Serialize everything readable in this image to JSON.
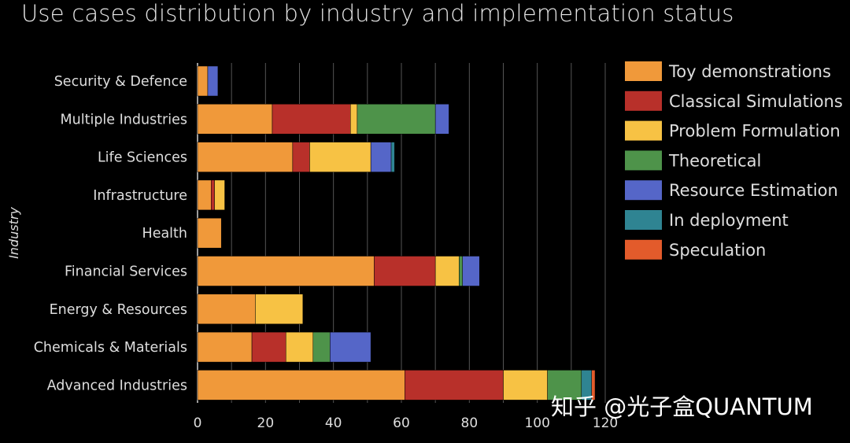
{
  "title": "Use cases distribution by industry and implementation status",
  "watermark": "知乎 @光子盒QUANTUM",
  "chart_data": {
    "type": "bar",
    "orientation": "horizontal",
    "stacked": true,
    "title": "Use cases distribution by industry and implementation status",
    "ylabel": "Industry",
    "xlabel": "",
    "xlim": [
      0,
      120
    ],
    "xticks": [
      0,
      20,
      40,
      60,
      80,
      100,
      120
    ],
    "grid": "vertical",
    "legend_position": "right",
    "categories": [
      "Security & Defence",
      "Multiple Industries",
      "Life Sciences",
      "Infrastructure",
      "Health",
      "Financial Services",
      "Energy & Resources",
      "Chemicals & Materials",
      "Advanced Industries"
    ],
    "series": [
      {
        "name": "Toy demonstrations",
        "color": "#f0993a",
        "values": [
          3,
          22,
          28,
          4,
          7,
          52,
          17,
          16,
          61
        ]
      },
      {
        "name": "Classical Simulations",
        "color": "#b8302a",
        "values": [
          0,
          23,
          5,
          1,
          0,
          18,
          0,
          10,
          29
        ]
      },
      {
        "name": "Problem Formulation",
        "color": "#f7c244",
        "values": [
          0,
          2,
          18,
          3,
          0,
          7,
          14,
          8,
          13
        ]
      },
      {
        "name": "Theoretical",
        "color": "#4e934a",
        "values": [
          0,
          23,
          0,
          0,
          0,
          1,
          0,
          5,
          10
        ]
      },
      {
        "name": "Resource Estimation",
        "color": "#5566c8",
        "values": [
          3,
          4,
          6,
          0,
          0,
          5,
          0,
          12,
          0
        ]
      },
      {
        "name": "In deployment",
        "color": "#2f8492",
        "values": [
          0,
          0,
          1,
          0,
          0,
          0,
          0,
          0,
          3
        ]
      },
      {
        "name": "Speculation",
        "color": "#e35b2b",
        "values": [
          0,
          0,
          0,
          0,
          0,
          0,
          0,
          0,
          1
        ]
      }
    ]
  }
}
